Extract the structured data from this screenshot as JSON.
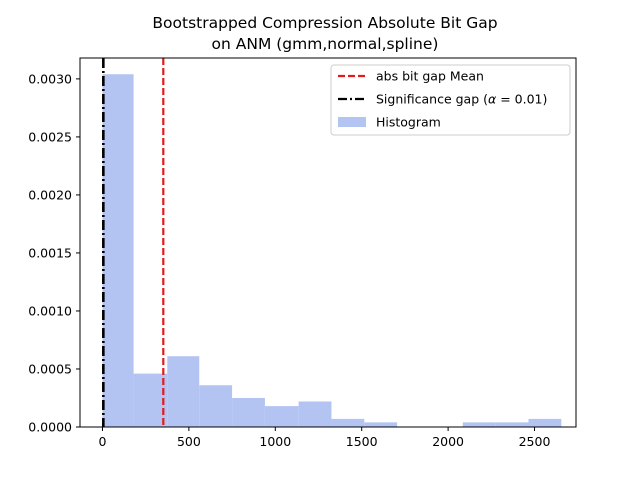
{
  "chart_data": {
    "type": "bar",
    "title": "Bootstrapped Compression Absolute Bit Gap",
    "subtitle": "on ANM (gmm,normal,spline)",
    "xlabel": "",
    "ylabel": "",
    "xlim": [
      -130,
      2740
    ],
    "ylim": [
      0,
      0.00318
    ],
    "grid": false,
    "legend_position": "top-right",
    "x_ticks": [
      0,
      500,
      1000,
      1500,
      2000,
      2500
    ],
    "x_tick_labels": [
      "0",
      "500",
      "1000",
      "1500",
      "2000",
      "2500"
    ],
    "y_ticks": [
      0,
      0.0005,
      0.001,
      0.0015,
      0.002,
      0.0025,
      0.003
    ],
    "y_tick_labels": [
      "0.0000",
      "0.0005",
      "0.0010",
      "0.0015",
      "0.0020",
      "0.0025",
      "0.0030"
    ],
    "histogram": {
      "name": "Histogram",
      "color": "#b3c4f2",
      "bin_edges": [
        0,
        180,
        375,
        560,
        750,
        940,
        1135,
        1325,
        1515,
        1705,
        1895,
        2085,
        2275,
        2465,
        2655
      ],
      "values": [
        0.00304,
        0.00046,
        0.00061,
        0.00036,
        0.00025,
        0.00018,
        0.00022,
        7e-05,
        4e-05,
        0,
        0,
        4e-05,
        4e-05,
        7e-05
      ]
    },
    "lines": [
      {
        "name": "abs bit gap Mean",
        "x": 352,
        "color": "#e41a1c",
        "style": "dashed"
      },
      {
        "name": "Significance gap ($\\alpha = 0.01$)",
        "legend_prefix": "Significance gap (",
        "legend_alpha": "α",
        "legend_suffix": " = 0.01)",
        "x": 5,
        "color": "#000000",
        "style": "dashdot"
      }
    ]
  }
}
